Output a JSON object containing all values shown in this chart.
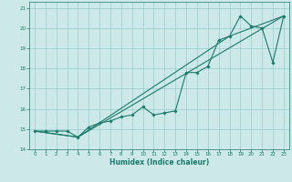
{
  "title": "",
  "xlabel": "Humidex (Indice chaleur)",
  "ylabel": "",
  "xlim": [
    -0.5,
    23.5
  ],
  "ylim": [
    14,
    21.3
  ],
  "yticks": [
    14,
    15,
    16,
    17,
    18,
    19,
    20,
    21
  ],
  "xticks": [
    0,
    1,
    2,
    3,
    4,
    5,
    6,
    7,
    8,
    9,
    10,
    11,
    12,
    13,
    14,
    15,
    16,
    17,
    18,
    19,
    20,
    21,
    22,
    23
  ],
  "bg_color": "#cce8e8",
  "grid_color": "#99cccc",
  "line_color": "#1a7a6a",
  "lines": [
    {
      "x": [
        0,
        1,
        2,
        3,
        4,
        5,
        6,
        7,
        8,
        9,
        10,
        11,
        12,
        13,
        14,
        15,
        16,
        17,
        18,
        19,
        20,
        21,
        22,
        23
      ],
      "y": [
        14.9,
        14.9,
        14.9,
        14.9,
        14.6,
        15.1,
        15.3,
        15.4,
        15.6,
        15.7,
        16.1,
        15.7,
        15.8,
        15.9,
        17.8,
        17.8,
        18.1,
        19.4,
        19.6,
        20.6,
        20.1,
        20.0,
        18.3,
        20.6
      ]
    },
    {
      "x": [
        0,
        4,
        23
      ],
      "y": [
        14.9,
        14.6,
        20.6
      ]
    },
    {
      "x": [
        0,
        4,
        18,
        23
      ],
      "y": [
        14.9,
        14.6,
        19.6,
        20.6
      ]
    }
  ],
  "marker": "D",
  "markersize": 1.8,
  "linewidth": 0.8,
  "tick_fontsize": 4.0,
  "xlabel_fontsize": 5.5,
  "figsize": [
    3.2,
    2.0
  ],
  "dpi": 100
}
